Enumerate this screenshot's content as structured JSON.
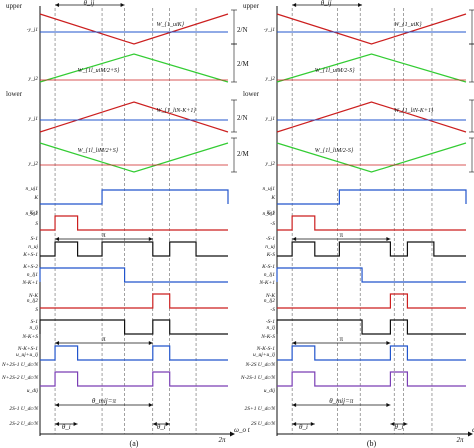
{
  "colors": {
    "red": "#cc1f1f",
    "blue": "#2255cc",
    "green": "#33cc33",
    "black": "#111111",
    "purple": "#7a3fb5",
    "grid": "#444444"
  },
  "panels": [
    {
      "tag": "(a)",
      "label_upper_arm": "upper\narm",
      "label_lower_arm": "lower\narm",
      "label_theta_top": "θ_ij",
      "label_pi_1": "π",
      "label_pi_2": "π",
      "label_theta_bottom": "θ_mij=π",
      "label_theta_left": "θ_i",
      "label_theta_right": "θ_i",
      "label_axis_end": "ω_o t",
      "label_2pi": "2π",
      "upper_carrier": "W_{1_uiK}",
      "upper_mod": "W_{1l_uiM/2+S}",
      "lower_carrier": "W_{1_liN-K+1}",
      "lower_mod": "W_{1l_liM/2+S}",
      "scale_2N_1": "2/N",
      "scale_2M_1": "2/M",
      "scale_2N_2": "2/N",
      "scale_2M_2": "2/M",
      "y_labels": [
        "-y_j1",
        "y_j2",
        "y_j1",
        "y_j2",
        "n_uj1",
        "K",
        "K-1",
        "n_uj2",
        "S",
        "S-1",
        "n_uj",
        "K+S-1",
        "K+S-2",
        "n_lj1",
        "N-K+1",
        "N-K",
        "n_lj2",
        "S",
        "S-1",
        "n_lj",
        "N-K+S",
        "N-K+S-1",
        "u_uj+u_lj",
        "N+2S-1  U_dc/N",
        "N+2S-2  U_dc/N",
        "u_dij",
        "2S-1  U_dc/N",
        "2S-2  U_dc/N"
      ]
    },
    {
      "tag": "(b)",
      "label_upper_arm": "upper\narm",
      "label_lower_arm": "lower\narm",
      "label_theta_top": "θ_ij",
      "label_pi_1": "π",
      "label_pi_2": "π",
      "label_theta_bottom": "θ_mij=π",
      "label_theta_left": "θ_i",
      "label_theta_right": "θ_i",
      "label_axis_end": "ω_o t",
      "label_2pi": "2π",
      "upper_carrier": "W_{1_uiK}",
      "upper_mod": "W_{1l_uiM/2-S}",
      "lower_carrier": "W_{1_liN-K+1}",
      "lower_mod": "W_{1l_liM/2-S}",
      "scale_2N_1": "2/N",
      "scale_2M_1": "2/M",
      "scale_2N_2": "2/N",
      "scale_2M_2": "2/M",
      "y_labels": [
        "-y_j1",
        "y_j2",
        "y_j1",
        "y_j2",
        "n_uj1",
        "K",
        "K-1",
        "n_uj2",
        "-S",
        "-S-1",
        "n_uj",
        "K-S",
        "K-S-1",
        "n_lj1",
        "N-K+1",
        "N-K",
        "n_lj2",
        "-S",
        "-S-1",
        "n_lj",
        "N-K-S",
        "N-K-S-1",
        "u_uj+u_lj",
        "N-2S  U_dc/N",
        "N-2S-1  U_dc/N",
        "u_dij",
        "2S+1  U_dc/N",
        "2S  U_dc/N"
      ]
    }
  ]
}
